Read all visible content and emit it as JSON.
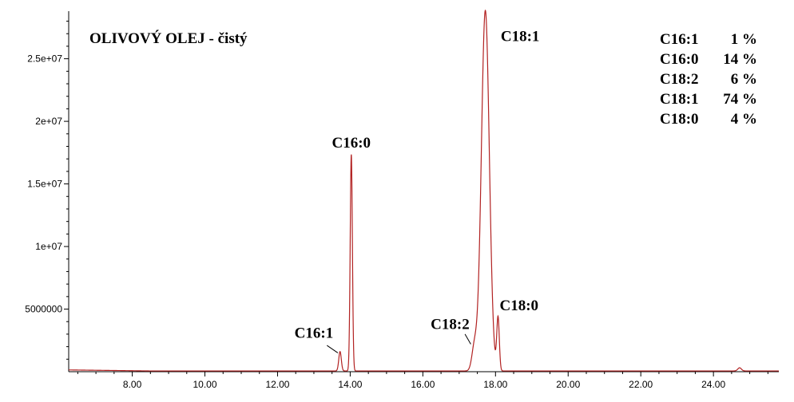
{
  "chart_data": {
    "type": "line",
    "title": "OLIVOVÝ OLEJ - čistý",
    "xlabel": "",
    "ylabel": "",
    "xlim": [
      6.25,
      25.8
    ],
    "ylim": [
      0,
      28800000
    ],
    "x_ticks": [
      {
        "value": 8,
        "label": "8.00"
      },
      {
        "value": 10,
        "label": "10.00"
      },
      {
        "value": 12,
        "label": "12.00"
      },
      {
        "value": 14,
        "label": "14.00"
      },
      {
        "value": 16,
        "label": "16.00"
      },
      {
        "value": 18,
        "label": "18.00"
      },
      {
        "value": 20,
        "label": "20.00"
      },
      {
        "value": 22,
        "label": "22.00"
      },
      {
        "value": 24,
        "label": "24.00"
      }
    ],
    "y_ticks": [
      {
        "value": 5000000,
        "label": "5000000"
      },
      {
        "value": 10000000,
        "label": "1e+07"
      },
      {
        "value": 15000000,
        "label": "1.5e+07"
      },
      {
        "value": 20000000,
        "label": "2e+07"
      },
      {
        "value": 25000000,
        "label": "2.5e+07"
      }
    ],
    "line_color": "#b22222",
    "baseline": 60000,
    "peaks": [
      {
        "name": "C16:1",
        "x": 13.72,
        "height": 1550000,
        "width": 0.035
      },
      {
        "name": "C16:0",
        "x": 14.03,
        "height": 17300000,
        "width": 0.03
      },
      {
        "name": "C18:2",
        "x": 17.42,
        "height": 1900000,
        "width": 0.07
      },
      {
        "name": "C18:1",
        "x": 17.72,
        "height": 28800000,
        "width": 0.11
      },
      {
        "name": "C18:0",
        "x": 18.07,
        "height": 4200000,
        "width": 0.035
      },
      {
        "name": "",
        "x": 24.72,
        "height": 250000,
        "width": 0.05
      }
    ],
    "peak_labels": [
      {
        "text": "C16:0",
        "x": 14.03,
        "y": 17900000,
        "anchor": "middle"
      },
      {
        "text": "C18:1",
        "x": 18.1,
        "y": 26400000,
        "anchor": "start"
      },
      {
        "text": "C18:0",
        "x": 18.07,
        "y": 4900000,
        "anchor": "start"
      },
      {
        "text": "C16:1",
        "x": 13.0,
        "y": 2700000,
        "anchor": "middle"
      },
      {
        "text": "C18:2",
        "x": 16.75,
        "y": 3400000,
        "anchor": "middle"
      }
    ],
    "legend": {
      "position": "top-right",
      "entries": [
        {
          "compound": "C16:1",
          "percent": "1 %"
        },
        {
          "compound": "C16:0",
          "percent": "14 %"
        },
        {
          "compound": "C18:2",
          "percent": "6 %"
        },
        {
          "compound": "C18:1",
          "percent": "74 %"
        },
        {
          "compound": "C18:0",
          "percent": "4 %"
        }
      ]
    }
  }
}
